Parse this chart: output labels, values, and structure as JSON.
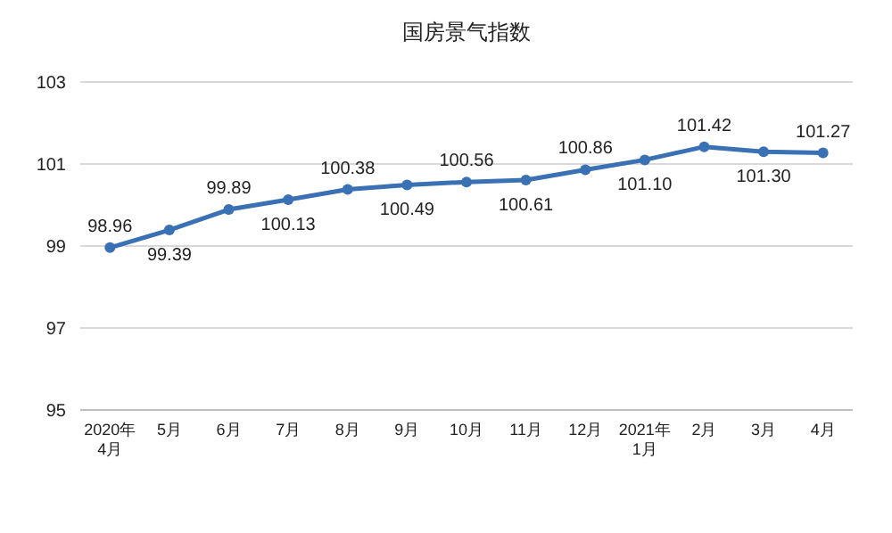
{
  "chart_data": {
    "type": "line",
    "title": "国房景气指数",
    "categories": [
      "2020年\n4月",
      "5月",
      "6月",
      "7月",
      "8月",
      "9月",
      "10月",
      "11月",
      "12月",
      "2021年\n1月",
      "2月",
      "3月",
      "4月"
    ],
    "series": [
      {
        "color": "#3a70b4",
        "values": [
          98.96,
          99.39,
          99.89,
          100.13,
          100.38,
          100.49,
          100.56,
          100.61,
          100.86,
          101.1,
          101.42,
          101.3,
          101.27
        ]
      }
    ],
    "value_labels": [
      "98.96",
      "99.39",
      "99.89",
      "100.13",
      "100.38",
      "100.49",
      "100.56",
      "100.61",
      "100.86",
      "101.10",
      "101.42",
      "101.30",
      "101.27"
    ],
    "ylim": [
      95,
      103
    ],
    "yticks": [
      95,
      97,
      99,
      101,
      103
    ],
    "grid": "y",
    "marker": "circle",
    "line_style": "solid"
  }
}
